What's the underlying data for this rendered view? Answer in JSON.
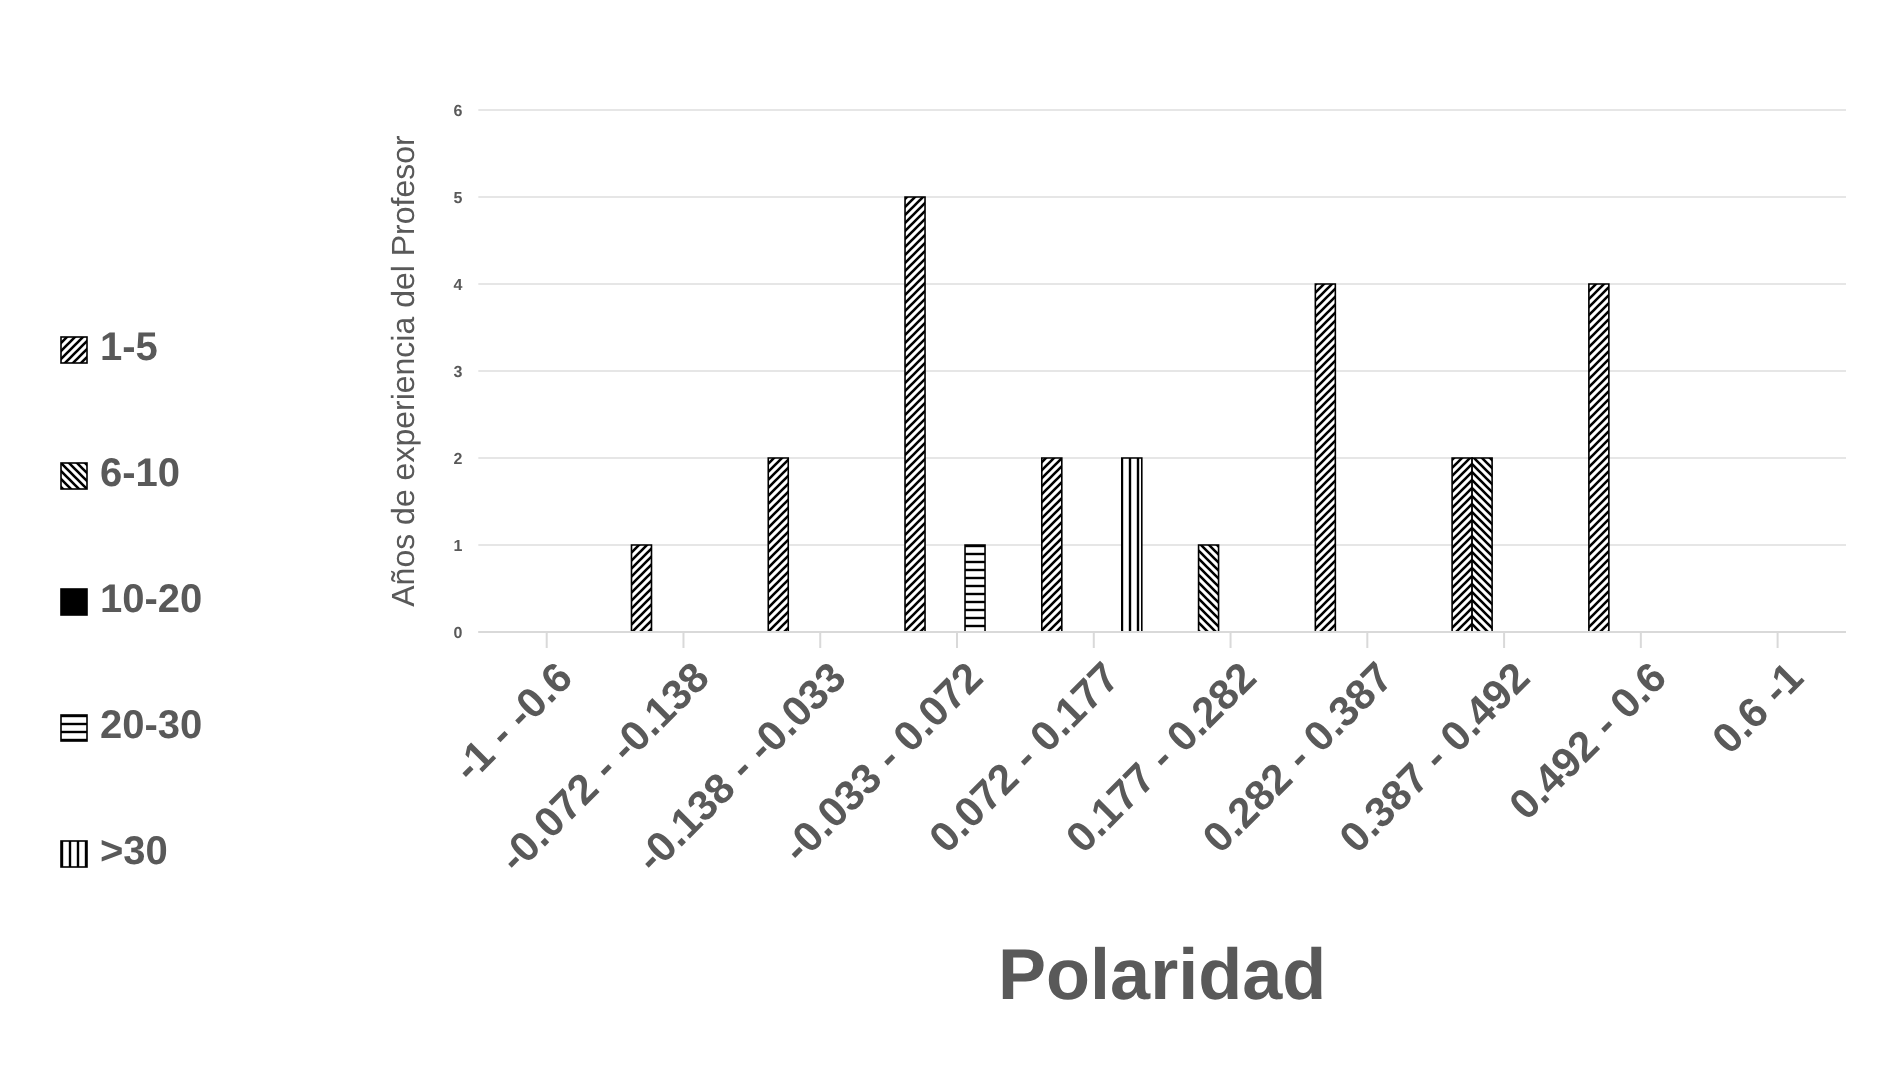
{
  "chart_data": {
    "type": "bar",
    "xlabel": "Polaridad",
    "ylabel": "Años de experiencia del Profesor",
    "categories": [
      "-1 - -0.6",
      "-0.072 - -0.138",
      "-0.138 - -0.033",
      "-0.033 - 0.072",
      "0.072 - 0.177",
      "0.177 - 0.282",
      "0.282 - 0.387",
      "0.387 - 0.492",
      "0.492 - 0.6",
      "0.6 -1"
    ],
    "series": [
      {
        "name": "1-5",
        "color": "#000000",
        "values": [
          0,
          1,
          2,
          5,
          2,
          0,
          4,
          2,
          4,
          0
        ]
      },
      {
        "name": "6-10",
        "color": "#000000",
        "values": [
          0,
          0,
          0,
          0,
          0,
          1,
          0,
          2,
          0,
          0
        ]
      },
      {
        "name": "10-20",
        "color": "#000000",
        "values": [
          0,
          0,
          0,
          0,
          0,
          0,
          0,
          0,
          0,
          0
        ]
      },
      {
        "name": "20-30",
        "color": "#000000",
        "values": [
          0,
          0,
          0,
          1,
          0,
          0,
          0,
          0,
          0,
          0
        ]
      },
      {
        "name": ">30",
        "color": "#000000",
        "values": [
          0,
          0,
          0,
          0,
          2,
          0,
          0,
          0,
          0,
          0
        ]
      }
    ],
    "ylim": [
      0,
      6
    ],
    "yticks": [
      0,
      1,
      2,
      3,
      4,
      5,
      6
    ],
    "grid": "y",
    "legend": "left"
  }
}
